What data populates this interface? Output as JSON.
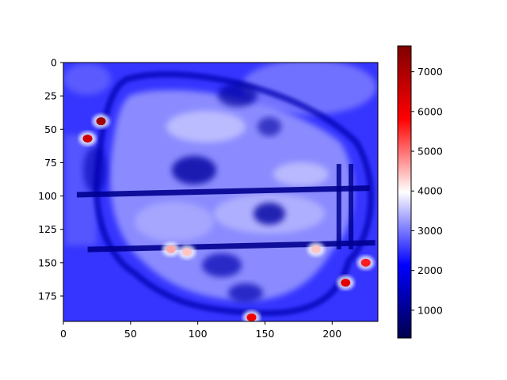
{
  "chart_data": {
    "type": "heatmap",
    "title": "",
    "xlabel": "",
    "ylabel": "",
    "xlim": [
      0,
      234
    ],
    "ylim": [
      194,
      0
    ],
    "x_ticks": [
      0,
      50,
      100,
      150,
      200
    ],
    "y_ticks": [
      0,
      25,
      50,
      75,
      100,
      125,
      150,
      175
    ],
    "colormap": "seismic",
    "colorbar": {
      "range": [
        300,
        7650
      ],
      "ticks": [
        1000,
        2000,
        3000,
        4000,
        5000,
        6000,
        7000
      ]
    },
    "colors": {
      "low": "#00004c",
      "mid_low": "#0000ff",
      "mid": "#ffffff",
      "mid_high": "#ff0000",
      "high": "#800000"
    },
    "features": {
      "runways": [
        {
          "y_start": 97,
          "y_end": 92,
          "x_start": 10,
          "x_end": 228
        },
        {
          "y_start": 138,
          "y_end": 133,
          "x_start": 18,
          "x_end": 232
        }
      ],
      "taxiways": [
        {
          "x": 205,
          "y_start": 76,
          "y_end": 140
        },
        {
          "x": 214,
          "y_start": 76,
          "y_end": 140
        }
      ],
      "hotspots": [
        {
          "x": 28,
          "y": 44,
          "value": 7200
        },
        {
          "x": 18,
          "y": 57,
          "value": 6500
        },
        {
          "x": 80,
          "y": 140,
          "value": 4600
        },
        {
          "x": 92,
          "y": 142,
          "value": 4400
        },
        {
          "x": 210,
          "y": 165,
          "value": 6200
        },
        {
          "x": 225,
          "y": 150,
          "value": 5600
        },
        {
          "x": 188,
          "y": 140,
          "value": 4400
        },
        {
          "x": 140,
          "y": 191,
          "value": 6000
        }
      ]
    }
  }
}
